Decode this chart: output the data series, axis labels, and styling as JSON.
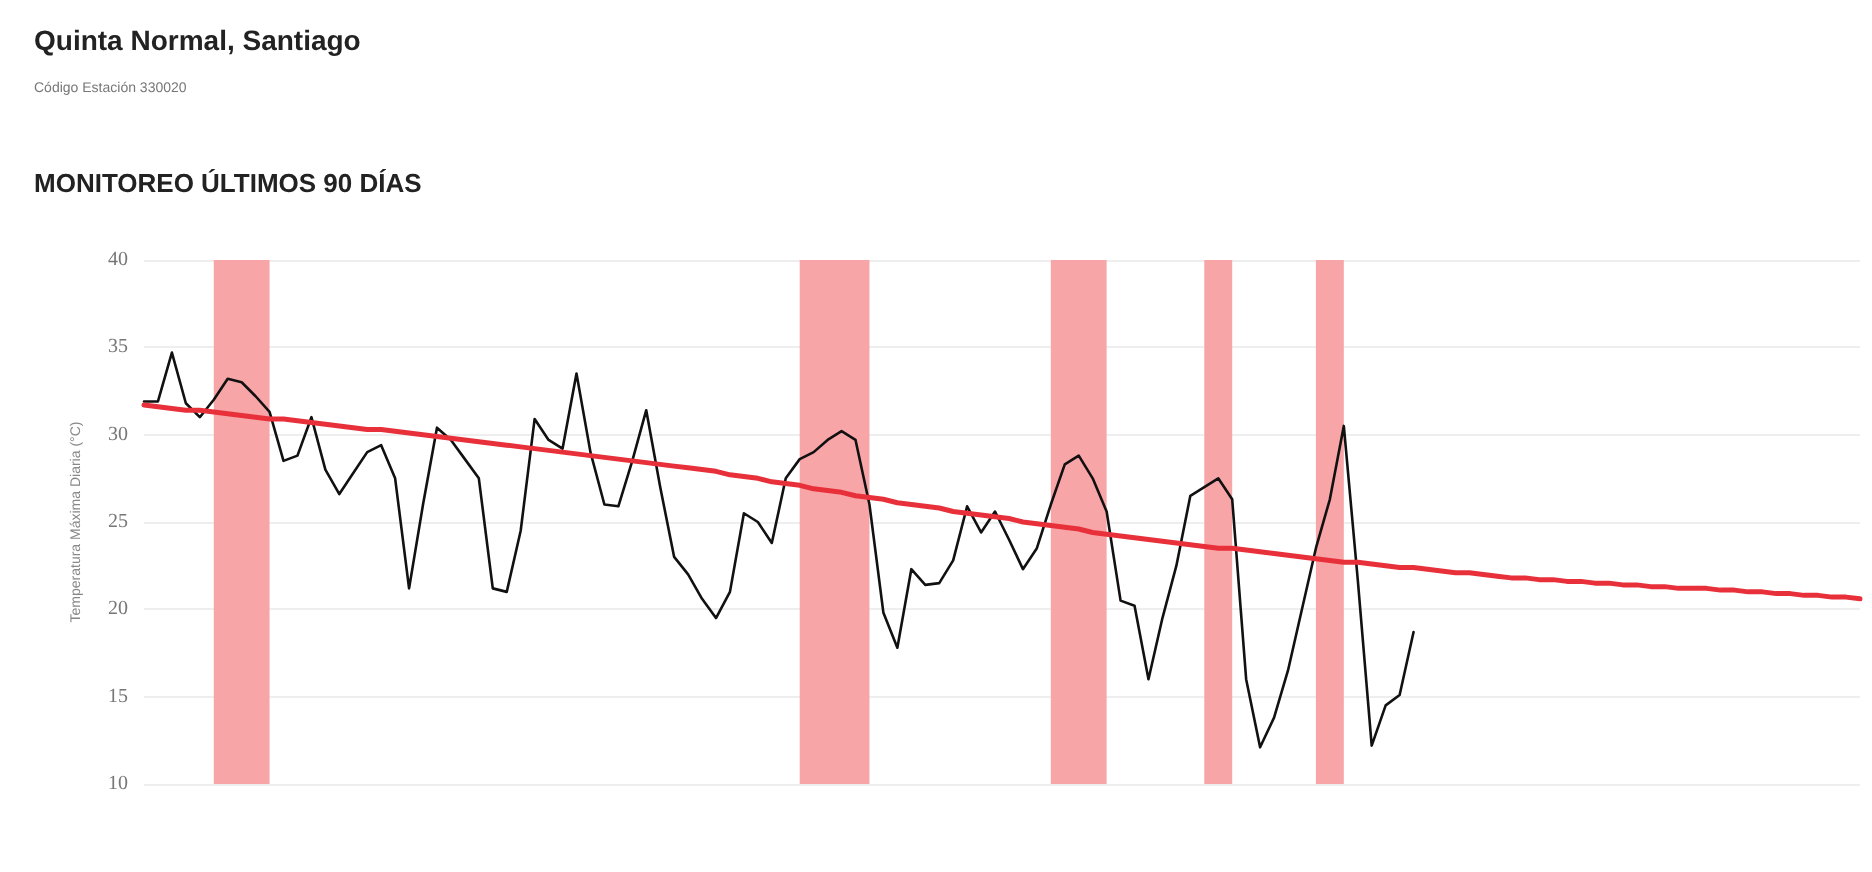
{
  "chart_data": {
    "type": "line",
    "title": "Quinta Normal, Santiago",
    "subtitle": "Código Estación 330020",
    "annotations": [
      "MONITOREO ÚLTIMOS 90 DÍAS"
    ],
    "ylabel": "Temperatura Máxima Diaria (°C)",
    "categories": [
      null,
      null,
      null,
      null,
      null,
      null,
      null,
      null,
      null,
      null,
      null,
      null,
      null,
      null,
      null,
      null,
      null,
      null,
      null,
      null,
      null,
      null,
      null,
      null,
      null,
      null,
      null,
      null,
      null,
      null,
      null,
      null,
      null,
      null,
      null,
      null,
      null,
      null,
      null,
      null,
      null,
      null,
      null,
      null,
      null,
      null,
      null,
      null,
      null,
      null,
      null,
      null,
      null,
      null,
      null,
      null,
      null,
      null,
      null,
      null,
      null,
      null,
      null,
      null,
      null,
      null,
      null,
      null,
      null,
      null,
      null,
      null,
      null,
      null,
      null,
      null,
      null,
      null,
      null,
      null,
      null,
      null,
      null,
      null,
      null,
      null,
      null,
      null,
      null,
      null,
      null,
      null,
      null,
      null,
      null,
      null,
      null,
      null,
      null,
      null,
      null,
      null,
      null,
      null,
      null,
      null,
      null,
      null,
      null,
      null,
      null,
      null,
      null,
      null,
      null,
      null,
      null,
      null,
      null,
      null,
      null,
      null,
      null,
      null
    ],
    "series": [
      {
        "color": "#111111",
        "values": [
          31.9,
          31.9,
          34.7,
          31.8,
          31.0,
          32.0,
          33.2,
          33.0,
          32.2,
          31.3,
          28.5,
          28.8,
          31.0,
          28.0,
          26.6,
          27.8,
          29.0,
          29.4,
          27.5,
          21.2,
          26.0,
          30.4,
          29.7,
          28.6,
          27.5,
          21.2,
          21.0,
          24.5,
          30.9,
          29.7,
          29.2,
          33.5,
          29.0,
          26.0,
          25.9,
          28.5,
          31.4,
          27.0,
          23.0,
          22.0,
          20.6,
          19.5,
          21.0,
          25.5,
          25.0,
          23.8,
          27.5,
          28.6,
          29.0,
          29.7,
          30.2,
          29.7,
          26.0,
          19.8,
          17.8,
          22.3,
          21.4,
          21.5,
          22.8,
          25.9,
          24.4,
          25.6,
          24.0,
          22.3,
          23.5,
          26.0,
          28.3,
          28.8,
          27.5,
          25.6,
          20.5,
          20.2,
          16.0,
          19.5,
          22.5,
          26.5,
          27.0,
          27.5,
          26.3,
          16.0,
          12.1,
          13.8,
          16.5,
          20.0,
          23.5,
          26.3,
          30.5,
          21.7,
          12.2,
          14.5,
          15.1,
          18.7,
          null,
          null,
          null,
          null,
          null,
          null,
          null,
          null,
          null,
          null,
          null,
          null,
          null,
          null,
          null,
          null,
          null,
          null,
          null,
          null,
          null,
          null,
          null,
          null,
          null,
          null,
          null,
          null,
          null,
          null,
          null,
          null
        ]
      },
      {
        "color": "#e8303a",
        "values": [
          31.7,
          31.6,
          31.5,
          31.4,
          31.4,
          31.3,
          31.2,
          31.1,
          31.0,
          30.9,
          30.9,
          30.8,
          30.7,
          30.6,
          30.5,
          30.4,
          30.3,
          30.3,
          30.2,
          30.1,
          30.0,
          29.9,
          29.8,
          29.7,
          29.6,
          29.5,
          29.4,
          29.3,
          29.2,
          29.1,
          29.0,
          28.9,
          28.8,
          28.7,
          28.6,
          28.5,
          28.4,
          28.3,
          28.2,
          28.1,
          28.0,
          27.9,
          27.7,
          27.6,
          27.5,
          27.3,
          27.2,
          27.1,
          26.9,
          26.8,
          26.7,
          26.5,
          26.4,
          26.3,
          26.1,
          26.0,
          25.9,
          25.8,
          25.6,
          25.5,
          25.4,
          25.3,
          25.2,
          25.0,
          24.9,
          24.8,
          24.7,
          24.6,
          24.4,
          24.3,
          24.2,
          24.1,
          24.0,
          23.9,
          23.8,
          23.7,
          23.6,
          23.5,
          23.5,
          23.4,
          23.3,
          23.2,
          23.1,
          23.0,
          22.9,
          22.8,
          22.7,
          22.7,
          22.6,
          22.5,
          22.4,
          22.4,
          22.3,
          22.2,
          22.1,
          22.1,
          22.0,
          21.9,
          21.8,
          21.8,
          21.7,
          21.7,
          21.6,
          21.6,
          21.5,
          21.5,
          21.4,
          21.4,
          21.3,
          21.3,
          21.2,
          21.2,
          21.2,
          21.1,
          21.1,
          21.0,
          21.0,
          20.9,
          20.9,
          20.8,
          20.8,
          20.7,
          20.7,
          20.6
        ]
      }
    ],
    "ylim": [
      10,
      40
    ],
    "yticks": [
      10,
      15,
      20,
      25,
      30,
      35,
      40
    ],
    "grid": "y",
    "marker": "none",
    "line_style": "solid"
  }
}
